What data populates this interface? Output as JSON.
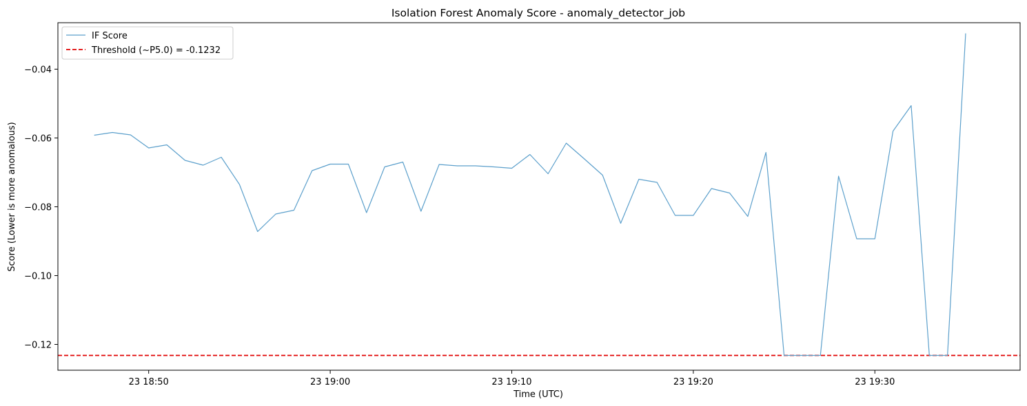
{
  "chart_data": {
    "type": "line",
    "title": "Isolation Forest Anomaly Score - anomaly_detector_job",
    "xlabel": "Time (UTC)",
    "ylabel": "Score (Lower is more anomalous)",
    "xlim": [
      "23 18:45",
      "23 19:38"
    ],
    "ylim": [
      -0.1275,
      -0.0265
    ],
    "x_ticks": [
      "23 18:50",
      "23 19:00",
      "23 19:10",
      "23 19:20",
      "23 19:30"
    ],
    "y_ticks": [
      -0.04,
      -0.06,
      -0.08,
      -0.1,
      -0.12
    ],
    "y_tick_labels": [
      "−0.04",
      "−0.06",
      "−0.08",
      "−0.10",
      "−0.12"
    ],
    "grid": false,
    "legend_position": "top-left",
    "series": [
      {
        "name": "IF Score",
        "color": "#5b9fcb",
        "style": "solid",
        "points": [
          [
            "23 18:47",
            -0.0592
          ],
          [
            "23 18:48",
            -0.0584
          ],
          [
            "23 18:49",
            -0.0591
          ],
          [
            "23 18:50",
            -0.0629
          ],
          [
            "23 18:51",
            -0.062
          ],
          [
            "23 18:52",
            -0.0665
          ],
          [
            "23 18:53",
            -0.0679
          ],
          [
            "23 18:54",
            -0.0656
          ],
          [
            "23 18:55",
            -0.0735
          ],
          [
            "23 18:56",
            -0.0872
          ],
          [
            "23 18:57",
            -0.0821
          ],
          [
            "23 18:58",
            -0.081
          ],
          [
            "23 18:59",
            -0.0695
          ],
          [
            "23 19:00",
            -0.0676
          ],
          [
            "23 19:01",
            -0.0676
          ],
          [
            "23 19:02",
            -0.0817
          ],
          [
            "23 19:03",
            -0.0684
          ],
          [
            "23 19:04",
            -0.067
          ],
          [
            "23 19:05",
            -0.0813
          ],
          [
            "23 19:06",
            -0.0677
          ],
          [
            "23 19:07",
            -0.0681
          ],
          [
            "23 19:08",
            -0.0681
          ],
          [
            "23 19:09",
            -0.0684
          ],
          [
            "23 19:10",
            -0.0688
          ],
          [
            "23 19:11",
            -0.0648
          ],
          [
            "23 19:12",
            -0.0704
          ],
          [
            "23 19:13",
            -0.0615
          ],
          [
            "23 19:14",
            -0.0661
          ],
          [
            "23 19:15",
            -0.0708
          ],
          [
            "23 19:16",
            -0.0848
          ],
          [
            "23 19:17",
            -0.072
          ],
          [
            "23 19:18",
            -0.0729
          ],
          [
            "23 19:19",
            -0.0825
          ],
          [
            "23 19:20",
            -0.0825
          ],
          [
            "23 19:21",
            -0.0747
          ],
          [
            "23 19:22",
            -0.076
          ],
          [
            "23 19:23",
            -0.0828
          ],
          [
            "23 19:24",
            -0.0642
          ],
          [
            "23 19:25",
            -0.1232
          ],
          [
            "23 19:26",
            -0.1232
          ],
          [
            "23 19:27",
            -0.1232
          ],
          [
            "23 19:28",
            -0.0711
          ],
          [
            "23 19:29",
            -0.0893
          ],
          [
            "23 19:30",
            -0.0893
          ],
          [
            "23 19:31",
            -0.058
          ],
          [
            "23 19:32",
            -0.0506
          ],
          [
            "23 19:33",
            -0.1232
          ],
          [
            "23 19:34",
            -0.1232
          ],
          [
            "23 19:35",
            -0.0296
          ]
        ]
      },
      {
        "name": "Threshold (~P5.0) = -0.1232",
        "color": "#e00000",
        "style": "dashed",
        "y": -0.1232
      }
    ]
  }
}
